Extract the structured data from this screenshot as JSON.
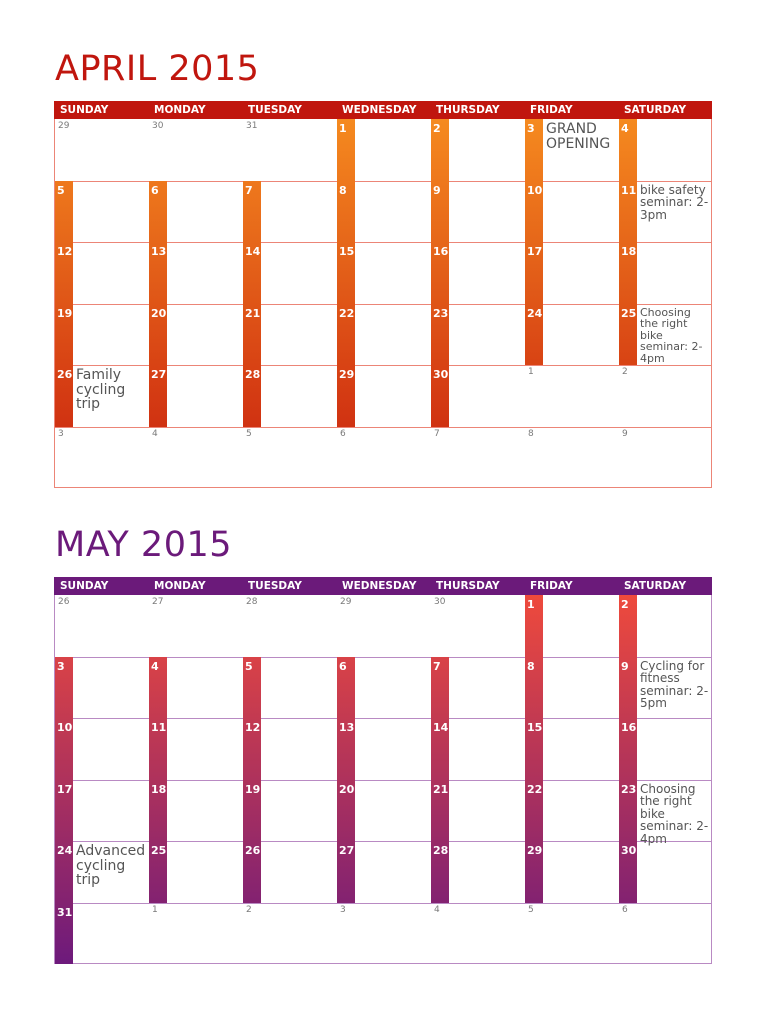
{
  "weekdays": [
    "SUNDAY",
    "MONDAY",
    "TUESDAY",
    "WEDNESDAY",
    "THURSDAY",
    "FRIDAY",
    "SATURDAY"
  ],
  "months": [
    {
      "title": "APRIL 2015",
      "title_color": "#c0160e",
      "header_color": "#c0160e",
      "line_color": "#ec8577",
      "gradient": [
        "#f58a1f",
        "#c9200f"
      ],
      "weeks": [
        [
          {
            "d": "29",
            "in": false
          },
          {
            "d": "30",
            "in": false
          },
          {
            "d": "31",
            "in": false
          },
          {
            "d": "1",
            "in": true
          },
          {
            "d": "2",
            "in": true
          },
          {
            "d": "3",
            "in": true,
            "note": "GRAND OPENING",
            "size": "big"
          },
          {
            "d": "4",
            "in": true
          }
        ],
        [
          {
            "d": "5",
            "in": true
          },
          {
            "d": "6",
            "in": true
          },
          {
            "d": "7",
            "in": true
          },
          {
            "d": "8",
            "in": true
          },
          {
            "d": "9",
            "in": true
          },
          {
            "d": "10",
            "in": true
          },
          {
            "d": "11",
            "in": true,
            "note": "bike safety seminar: 2-3pm",
            "size": "med"
          }
        ],
        [
          {
            "d": "12",
            "in": true
          },
          {
            "d": "13",
            "in": true
          },
          {
            "d": "14",
            "in": true
          },
          {
            "d": "15",
            "in": true
          },
          {
            "d": "16",
            "in": true
          },
          {
            "d": "17",
            "in": true
          },
          {
            "d": "18",
            "in": true
          }
        ],
        [
          {
            "d": "19",
            "in": true
          },
          {
            "d": "20",
            "in": true
          },
          {
            "d": "21",
            "in": true
          },
          {
            "d": "22",
            "in": true
          },
          {
            "d": "23",
            "in": true
          },
          {
            "d": "24",
            "in": true
          },
          {
            "d": "25",
            "in": true,
            "note": "Choosing the right bike seminar: 2-4pm",
            "size": "sm"
          }
        ],
        [
          {
            "d": "26",
            "in": true,
            "note": "Family cycling trip",
            "size": "big"
          },
          {
            "d": "27",
            "in": true
          },
          {
            "d": "28",
            "in": true
          },
          {
            "d": "29",
            "in": true
          },
          {
            "d": "30",
            "in": true
          },
          {
            "d": "1",
            "in": false
          },
          {
            "d": "2",
            "in": false
          }
        ],
        [
          {
            "d": "3",
            "in": false
          },
          {
            "d": "4",
            "in": false
          },
          {
            "d": "5",
            "in": false
          },
          {
            "d": "6",
            "in": false
          },
          {
            "d": "7",
            "in": false
          },
          {
            "d": "8",
            "in": false
          },
          {
            "d": "9",
            "in": false
          }
        ]
      ]
    },
    {
      "title": "MAY 2015",
      "title_color": "#6b1a7a",
      "header_color": "#6b1a7a",
      "line_color": "#b98ac3",
      "gradient": [
        "#ee4a3c",
        "#6d1a7c"
      ],
      "weeks": [
        [
          {
            "d": "26",
            "in": false
          },
          {
            "d": "27",
            "in": false
          },
          {
            "d": "28",
            "in": false
          },
          {
            "d": "29",
            "in": false
          },
          {
            "d": "30",
            "in": false
          },
          {
            "d": "1",
            "in": true
          },
          {
            "d": "2",
            "in": true
          }
        ],
        [
          {
            "d": "3",
            "in": true
          },
          {
            "d": "4",
            "in": true
          },
          {
            "d": "5",
            "in": true
          },
          {
            "d": "6",
            "in": true
          },
          {
            "d": "7",
            "in": true
          },
          {
            "d": "8",
            "in": true
          },
          {
            "d": "9",
            "in": true,
            "note": "Cycling for fitness seminar: 2-5pm",
            "size": "med"
          }
        ],
        [
          {
            "d": "10",
            "in": true
          },
          {
            "d": "11",
            "in": true
          },
          {
            "d": "12",
            "in": true
          },
          {
            "d": "13",
            "in": true
          },
          {
            "d": "14",
            "in": true
          },
          {
            "d": "15",
            "in": true
          },
          {
            "d": "16",
            "in": true
          }
        ],
        [
          {
            "d": "17",
            "in": true
          },
          {
            "d": "18",
            "in": true
          },
          {
            "d": "19",
            "in": true
          },
          {
            "d": "20",
            "in": true
          },
          {
            "d": "21",
            "in": true
          },
          {
            "d": "22",
            "in": true
          },
          {
            "d": "23",
            "in": true,
            "note": "Choosing the right bike seminar: 2-4pm",
            "size": "med"
          }
        ],
        [
          {
            "d": "24",
            "in": true,
            "note": "Advanced cycling trip",
            "size": "big"
          },
          {
            "d": "25",
            "in": true
          },
          {
            "d": "26",
            "in": true
          },
          {
            "d": "27",
            "in": true
          },
          {
            "d": "28",
            "in": true
          },
          {
            "d": "29",
            "in": true
          },
          {
            "d": "30",
            "in": true
          }
        ],
        [
          {
            "d": "31",
            "in": true
          },
          {
            "d": "1",
            "in": false
          },
          {
            "d": "2",
            "in": false
          },
          {
            "d": "3",
            "in": false
          },
          {
            "d": "4",
            "in": false
          },
          {
            "d": "5",
            "in": false
          },
          {
            "d": "6",
            "in": false
          }
        ]
      ]
    }
  ]
}
